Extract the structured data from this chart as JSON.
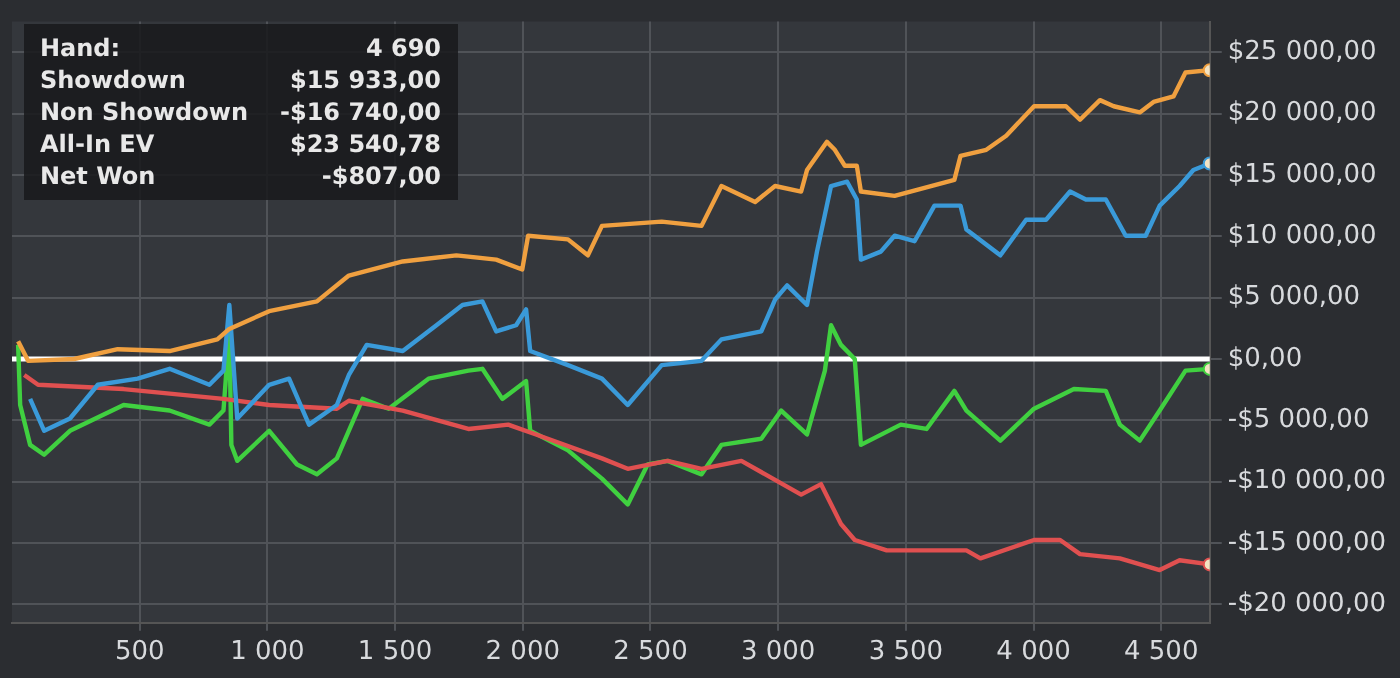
{
  "chart_data": {
    "type": "line",
    "annotations": [
      "Hand:",
      "4 690",
      "Showdown",
      "$15 933,00",
      "Non Showdown",
      "-$16 740,00",
      "All-In EV",
      "$23 540,78",
      "Net Won",
      "-$807,00"
    ],
    "xlim": [
      0,
      4690
    ],
    "xticks": [
      {
        "value": 500,
        "label": "500"
      },
      {
        "value": 1000,
        "label": "1 000"
      },
      {
        "value": 1500,
        "label": "1 500"
      },
      {
        "value": 2000,
        "label": "2 000"
      },
      {
        "value": 2500,
        "label": "2 500"
      },
      {
        "value": 3000,
        "label": "3 000"
      },
      {
        "value": 3500,
        "label": "3 500"
      },
      {
        "value": 4000,
        "label": "4 000"
      },
      {
        "value": 4500,
        "label": "4 500"
      }
    ],
    "ylim": [
      -21500,
      27500
    ],
    "yticks": [
      {
        "value": -20000,
        "label": "-$20 000,00"
      },
      {
        "value": -15000,
        "label": "-$15 000,00"
      },
      {
        "value": -10000,
        "label": "-$10 000,00"
      },
      {
        "value": -5000,
        "label": "-$5 000,00"
      },
      {
        "value": 0,
        "label": "$0,00"
      },
      {
        "value": 5000,
        "label": "$5 000,00"
      },
      {
        "value": 10000,
        "label": "$10 000,00"
      },
      {
        "value": 15000,
        "label": "$15 000,00"
      },
      {
        "value": 20000,
        "label": "$20 000,00"
      },
      {
        "value": 25000,
        "label": "$25 000,00"
      }
    ],
    "grid": true,
    "legend": false,
    "marker": "none",
    "line_style": "solid",
    "ref_lines": [
      {
        "axis": "y",
        "value": 0,
        "color": "#ffffff"
      }
    ],
    "series": [
      {
        "color": "#f0a040",
        "x": [
          24,
          63,
          243,
          414,
          617,
          804,
          851,
          1007,
          1194,
          1319,
          1530,
          1740,
          1896,
          1998,
          2021,
          2177,
          2255,
          2310,
          2544,
          2700,
          2778,
          2910,
          2988,
          3090,
          3113,
          3191,
          3222,
          3261,
          3308,
          3324,
          3456,
          3690,
          3714,
          3815,
          3893,
          4002,
          4127,
          4182,
          4260,
          4314,
          4416,
          4470,
          4548,
          4595,
          4690
        ],
        "values": [
          1450,
          -150,
          0,
          800,
          650,
          1600,
          2450,
          3900,
          4700,
          6800,
          7950,
          8450,
          8100,
          7300,
          10050,
          9750,
          8450,
          10850,
          11200,
          10850,
          14100,
          12800,
          14100,
          13650,
          15400,
          17700,
          17050,
          15750,
          15750,
          13650,
          13300,
          14600,
          16550,
          17050,
          18200,
          20600,
          20600,
          19500,
          21100,
          20600,
          20100,
          20950,
          21400,
          23350,
          23540.78
        ]
      },
      {
        "color": "#3a9ad9",
        "x": [
          71,
          126,
          227,
          336,
          492,
          617,
          773,
          828,
          851,
          882,
          1007,
          1085,
          1163,
          1272,
          1319,
          1389,
          1530,
          1662,
          1764,
          1842,
          1896,
          1974,
          2013,
          2029,
          2177,
          2310,
          2411,
          2544,
          2700,
          2778,
          2934,
          2988,
          3035,
          3113,
          3152,
          3207,
          3270,
          3308,
          3324,
          3402,
          3456,
          3534,
          3612,
          3714,
          3737,
          3870,
          3971,
          4049,
          4143,
          4205,
          4283,
          4361,
          4439,
          4494,
          4572,
          4626,
          4690
        ],
        "values": [
          -3250,
          -5850,
          -4850,
          -2100,
          -1600,
          -800,
          -2100,
          -950,
          4400,
          -4850,
          -2100,
          -1600,
          -5350,
          -3750,
          -1300,
          1150,
          650,
          2750,
          4400,
          4700,
          2250,
          2750,
          4050,
          650,
          -500,
          -1600,
          -3750,
          -500,
          -150,
          1600,
          2250,
          4850,
          6000,
          4400,
          8750,
          14100,
          14450,
          13000,
          8100,
          8750,
          10050,
          9600,
          12500,
          12500,
          10550,
          8450,
          11350,
          11350,
          13650,
          13000,
          13000,
          10050,
          10050,
          12500,
          14100,
          15400,
          15933
        ]
      },
      {
        "color": "#e05050",
        "x": [
          48,
          102,
          437,
          828,
          1007,
          1272,
          1319,
          1530,
          1787,
          1943,
          2052,
          2310,
          2411,
          2567,
          2700,
          2856,
          3090,
          3168,
          3246,
          3300,
          3425,
          3737,
          3792,
          4002,
          4104,
          4182,
          4338,
          4494,
          4572,
          4690
        ],
        "values": [
          -1300,
          -2100,
          -2450,
          -3250,
          -3750,
          -4050,
          -3400,
          -4200,
          -5700,
          -5350,
          -6150,
          -8100,
          -8950,
          -8300,
          -8950,
          -8300,
          -11050,
          -10200,
          -13450,
          -14750,
          -15600,
          -15600,
          -16250,
          -14750,
          -14750,
          -15900,
          -16250,
          -17200,
          -16400,
          -16740
        ]
      },
      {
        "color": "#40d040",
        "x": [
          24,
          32,
          71,
          126,
          227,
          437,
          617,
          773,
          828,
          851,
          859,
          882,
          1007,
          1116,
          1194,
          1272,
          1373,
          1475,
          1631,
          1787,
          1842,
          1920,
          2013,
          2029,
          2177,
          2310,
          2411,
          2489,
          2567,
          2700,
          2778,
          2934,
          3012,
          3113,
          3183,
          3207,
          3246,
          3300,
          3324,
          3480,
          3581,
          3690,
          3737,
          3870,
          4002,
          4158,
          4283,
          4338,
          4416,
          4494,
          4595,
          4690
        ],
        "values": [
          1150,
          -3750,
          -7000,
          -7800,
          -5850,
          -3750,
          -4200,
          -5350,
          -4200,
          2250,
          -7000,
          -8300,
          -5850,
          -8600,
          -9400,
          -8100,
          -3250,
          -4050,
          -1600,
          -950,
          -800,
          -3250,
          -1800,
          -5850,
          -7450,
          -9750,
          -11850,
          -8600,
          -8300,
          -9400,
          -7000,
          -6500,
          -4200,
          -6150,
          -950,
          2750,
          1150,
          0,
          -7000,
          -5350,
          -5700,
          -2600,
          -4200,
          -6650,
          -4050,
          -2450,
          -2600,
          -5350,
          -6650,
          -4200,
          -950,
          -807
        ]
      }
    ]
  }
}
